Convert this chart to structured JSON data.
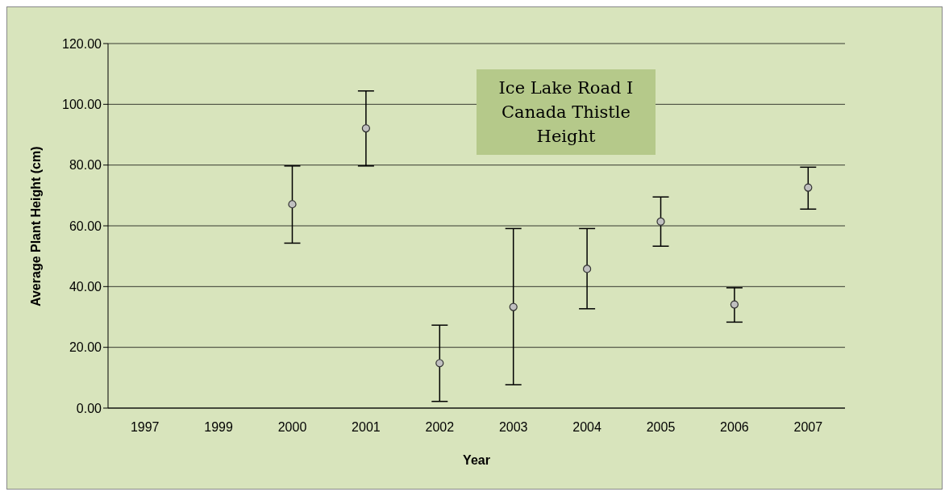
{
  "chart_data": {
    "type": "scatter",
    "title": "Ice Lake Road I\nCanada Thistle\nHeight",
    "xlabel": "Year",
    "ylabel": "Average Plant Height (cm)",
    "categories": [
      "1997",
      "1999",
      "2000",
      "2001",
      "2002",
      "2003",
      "2004",
      "2005",
      "2006",
      "2007"
    ],
    "series": [
      {
        "color": "#c0c0c0",
        "values": [
          null,
          null,
          67.1,
          92.1,
          14.8,
          33.3,
          45.8,
          61.4,
          34.1,
          72.6
        ],
        "errors": [
          null,
          null,
          [
            54.3,
            79.7
          ],
          [
            79.7,
            104.4
          ],
          [
            2.2,
            27.3
          ],
          [
            7.7,
            59.1
          ],
          [
            32.7,
            59.1
          ],
          [
            53.3,
            69.5
          ],
          [
            28.3,
            39.6
          ],
          [
            65.5,
            79.3
          ]
        ]
      }
    ],
    "ylim": [
      0,
      120
    ],
    "yticks": [
      {
        "value": 0,
        "label": "0.00"
      },
      {
        "value": 20,
        "label": "20.00"
      },
      {
        "value": 40,
        "label": "40.00"
      },
      {
        "value": 60,
        "label": "60.00"
      },
      {
        "value": 80,
        "label": "80.00"
      },
      {
        "value": 100,
        "label": "100.00"
      },
      {
        "value": 120,
        "label": "120.00"
      }
    ],
    "grid": "y",
    "legend": false,
    "marker": "circle"
  }
}
